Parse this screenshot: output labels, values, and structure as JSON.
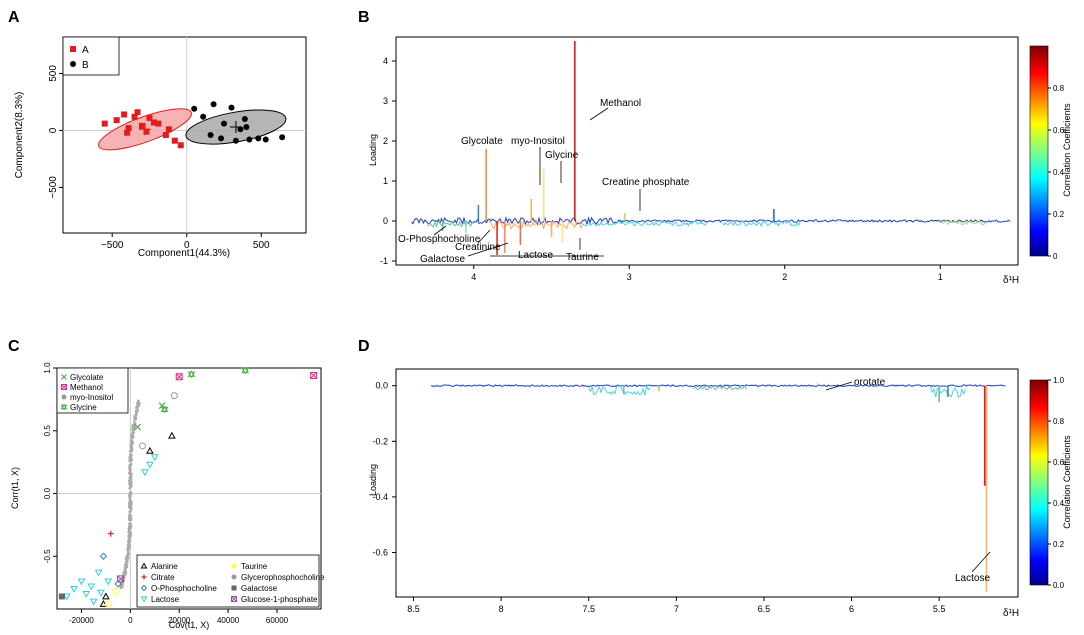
{
  "panels": {
    "A": {
      "label": "A",
      "type": "scatter",
      "xlabel": "Component1(44.3%)",
      "ylabel": "Component2(8.3%)",
      "xlim": [
        -830,
        800
      ],
      "ylim": [
        -900,
        820
      ],
      "xticks": [
        -500,
        0,
        500
      ],
      "yticks": [
        -500,
        0,
        500
      ],
      "legend": [
        {
          "name": "A",
          "color": "#e41a1c",
          "marker": "square"
        },
        {
          "name": "B",
          "color": "#000000",
          "marker": "circle"
        }
      ],
      "series": [
        {
          "name": "A",
          "color": "#e41a1c",
          "ellipse_fill": "#f4a6a6",
          "ellipse": {
            "cx": -280,
            "cy": 10,
            "rx": 330,
            "ry": 110,
            "angle": -20
          },
          "points": [
            [
              -550,
              60
            ],
            [
              -470,
              90
            ],
            [
              -420,
              140
            ],
            [
              -390,
              20
            ],
            [
              -350,
              120
            ],
            [
              -330,
              160
            ],
            [
              -300,
              40
            ],
            [
              -270,
              -10
            ],
            [
              -250,
              110
            ],
            [
              -220,
              70
            ],
            [
              -190,
              60
            ],
            [
              -140,
              -40
            ],
            [
              -120,
              10
            ],
            [
              -80,
              -90
            ],
            [
              -40,
              -130
            ],
            [
              -400,
              -20
            ]
          ]
        },
        {
          "name": "B",
          "color": "#000000",
          "ellipse_fill": "#a8a8a8",
          "ellipse": {
            "cx": 330,
            "cy": 30,
            "rx": 340,
            "ry": 130,
            "angle": -10
          },
          "points": [
            [
              50,
              190
            ],
            [
              110,
              120
            ],
            [
              160,
              -40
            ],
            [
              180,
              230
            ],
            [
              250,
              60
            ],
            [
              300,
              200
            ],
            [
              330,
              -90
            ],
            [
              360,
              10
            ],
            [
              390,
              100
            ],
            [
              420,
              -80
            ],
            [
              480,
              -70
            ],
            [
              530,
              -80
            ],
            [
              640,
              -60
            ],
            [
              230,
              -70
            ],
            [
              400,
              30
            ]
          ]
        }
      ]
    },
    "B": {
      "label": "B",
      "type": "line",
      "ylabel": "Loading",
      "xlabel": "δ¹H",
      "xlim": [
        4.5,
        0.5
      ],
      "ylim": [
        -1.1,
        4.6
      ],
      "xticks": [
        4,
        3,
        2,
        1
      ],
      "yticks": [
        -1,
        0,
        1,
        2,
        3,
        4
      ],
      "colorbar": {
        "label": "Correlation Coefficients",
        "ticks": [
          0,
          0.2,
          0.4,
          0.6,
          0.8
        ]
      },
      "peaks": [
        {
          "x": 3.35,
          "y": 4.5,
          "color": "#e31a1c"
        },
        {
          "x": 3.92,
          "y": 1.8,
          "color": "#fd8d3c"
        },
        {
          "x": 3.63,
          "y": 0.55,
          "color": "#fdae61"
        },
        {
          "x": 3.55,
          "y": 1.3,
          "color": "#fee08b"
        },
        {
          "x": 3.03,
          "y": 0.2,
          "color": "#a6d96a"
        },
        {
          "x": 2.07,
          "y": 0.3,
          "color": "#1f78b4"
        },
        {
          "x": 3.7,
          "y": -0.6,
          "color": "#f46d43"
        },
        {
          "x": 3.85,
          "y": -0.85,
          "color": "#d7301f"
        },
        {
          "x": 3.8,
          "y": -0.8,
          "color": "#fc8d59"
        },
        {
          "x": 3.5,
          "y": -0.4,
          "color": "#fdae61"
        },
        {
          "x": 3.43,
          "y": -0.55,
          "color": "#fee08b"
        },
        {
          "x": 4.2,
          "y": -0.25,
          "color": "#66c2a5"
        },
        {
          "x": 4.05,
          "y": -0.3,
          "color": "#abdda4"
        },
        {
          "x": 3.97,
          "y": 0.4,
          "color": "#3288bd"
        }
      ],
      "annotations": [
        {
          "text": "Methanol"
        },
        {
          "text": "Glycolate"
        },
        {
          "text": "myo-Inositol"
        },
        {
          "text": "Glycine"
        },
        {
          "text": "Creatine phosphate"
        },
        {
          "text": "O-Phosphocholine"
        },
        {
          "text": "Creatinine"
        },
        {
          "text": "Galactose"
        },
        {
          "text": "Lactose"
        },
        {
          "text": "Taurine"
        }
      ]
    },
    "C": {
      "label": "C",
      "type": "scatter",
      "xlabel": "Cov(t1, X)",
      "ylabel": "Corr(t1, X)",
      "xlim": [
        -30000,
        78000
      ],
      "ylim": [
        -0.92,
        1.0
      ],
      "xticks": [
        -20000,
        0,
        20000,
        40000,
        60000
      ],
      "xtick_labels": [
        "-20000",
        "0",
        "20000",
        "40000",
        "60000"
      ],
      "yticks": [
        -0.5,
        0.0,
        0.5,
        1.0
      ],
      "ytick_labels": [
        "-0.5",
        "0.0",
        "0.5",
        "1.0"
      ],
      "legend_top": [
        {
          "name": "Glycolate",
          "color": "#4daf4a",
          "marker": "x"
        },
        {
          "name": "Methanol",
          "color": "#e7298a",
          "marker": "square-x"
        },
        {
          "name": "myo-Inositol",
          "color": "#999999",
          "marker": "circle"
        },
        {
          "name": "Glycine",
          "color": "#4daf4a",
          "marker": "star"
        }
      ],
      "legend_bottom": [
        {
          "name": "Alanine",
          "color": "#000000",
          "marker": "triangle"
        },
        {
          "name": "Citrate",
          "color": "#e41a1c",
          "marker": "plus"
        },
        {
          "name": "O-Phosphocholine",
          "color": "#377eb8",
          "marker": "diamond"
        },
        {
          "name": "Lactose",
          "color": "#33ccdd",
          "marker": "triangle-down"
        },
        {
          "name": "Taurine",
          "color": "#ffff33",
          "marker": "circle"
        },
        {
          "name": "Glycerophosphocholine",
          "color": "#999999",
          "marker": "circle"
        },
        {
          "name": "Galactose",
          "color": "#666666",
          "marker": "square"
        },
        {
          "name": "Glucose-1-phosphate",
          "color": "#984ea3",
          "marker": "square-x"
        }
      ],
      "points": [
        {
          "cls": "Methanol",
          "x": 75000,
          "y": 0.94
        },
        {
          "cls": "Methanol",
          "x": 20000,
          "y": 0.93
        },
        {
          "cls": "Glycine",
          "x": 47000,
          "y": 0.98
        },
        {
          "cls": "Glycine",
          "x": 25000,
          "y": 0.95
        },
        {
          "cls": "Glycine",
          "x": 14000,
          "y": 0.67
        },
        {
          "cls": "Glycolate",
          "x": 13000,
          "y": 0.7
        },
        {
          "cls": "Glycolate",
          "x": 3000,
          "y": 0.53
        },
        {
          "cls": "myo-Inositol",
          "x": 18000,
          "y": 0.78
        },
        {
          "cls": "myo-Inositol",
          "x": 5000,
          "y": 0.38
        },
        {
          "cls": "Alanine",
          "x": 8000,
          "y": 0.34
        },
        {
          "cls": "Alanine",
          "x": 17000,
          "y": 0.46
        },
        {
          "cls": "Alanine",
          "x": -10000,
          "y": -0.82
        },
        {
          "cls": "Alanine",
          "x": -11000,
          "y": -0.88
        },
        {
          "cls": "Citrate",
          "x": -8000,
          "y": -0.32
        },
        {
          "cls": "O-Phosphocholine",
          "x": -11000,
          "y": -0.5
        },
        {
          "cls": "O-Phosphocholine",
          "x": -5000,
          "y": -0.72
        },
        {
          "cls": "Lactose",
          "x": -26000,
          "y": -0.82
        },
        {
          "cls": "Lactose",
          "x": -23000,
          "y": -0.76
        },
        {
          "cls": "Lactose",
          "x": -20000,
          "y": -0.7
        },
        {
          "cls": "Lactose",
          "x": -18000,
          "y": -0.8
        },
        {
          "cls": "Lactose",
          "x": -16000,
          "y": -0.74
        },
        {
          "cls": "Lactose",
          "x": -15000,
          "y": -0.86
        },
        {
          "cls": "Lactose",
          "x": -13000,
          "y": -0.63
        },
        {
          "cls": "Lactose",
          "x": -12000,
          "y": -0.79
        },
        {
          "cls": "Lactose",
          "x": -9000,
          "y": -0.7
        },
        {
          "cls": "Lactose",
          "x": 6000,
          "y": 0.17
        },
        {
          "cls": "Lactose",
          "x": 8000,
          "y": 0.23
        },
        {
          "cls": "Lactose",
          "x": 10000,
          "y": 0.29
        },
        {
          "cls": "Taurine",
          "x": -6000,
          "y": -0.78
        },
        {
          "cls": "Taurine",
          "x": -9000,
          "y": -0.88
        },
        {
          "cls": "Galactose",
          "x": -28000,
          "y": -0.82
        },
        {
          "cls": "Glucose-1-phosphate",
          "x": -4000,
          "y": -0.68
        }
      ]
    },
    "D": {
      "label": "D",
      "type": "line",
      "ylabel": "Loading",
      "xlabel": "δ¹H",
      "xlim": [
        8.6,
        5.05
      ],
      "ylim": [
        -0.76,
        0.06
      ],
      "xticks": [
        8.5,
        8,
        7.5,
        7,
        6.5,
        6,
        5.5
      ],
      "xtick_labels": [
        "8.5",
        "8",
        "7.5",
        "7",
        "6.5",
        "6",
        "5.5"
      ],
      "yticks": [
        0.0,
        -0.2,
        -0.4,
        -0.6
      ],
      "ytick_labels": [
        "0.0",
        "-0.2",
        "-0.4",
        "-0.6"
      ],
      "colorbar": {
        "label": "Correlation Coefficients",
        "ticks": [
          0.0,
          0.2,
          0.4,
          0.6,
          0.8,
          1.0
        ],
        "tick_labels": [
          "0.0",
          "0.2",
          "0.4",
          "0.6",
          "0.8",
          "1.0"
        ]
      },
      "peaks": [
        {
          "x": 5.23,
          "y": -0.74,
          "color": "#fdae61"
        },
        {
          "x": 5.24,
          "y": -0.36,
          "color": "#e31a1c"
        },
        {
          "x": 5.5,
          "y": -0.06,
          "color": "#66c2a5"
        },
        {
          "x": 5.45,
          "y": -0.04,
          "color": "#3288bd"
        },
        {
          "x": 6.2,
          "y": 0.01,
          "color": "#fee08b"
        },
        {
          "x": 7.3,
          "y": -0.03,
          "color": "#66c2a5"
        },
        {
          "x": 7.1,
          "y": -0.02,
          "color": "#a6d96a"
        }
      ],
      "annotations": [
        {
          "text": "orotate"
        },
        {
          "text": "Lactose"
        }
      ]
    }
  }
}
